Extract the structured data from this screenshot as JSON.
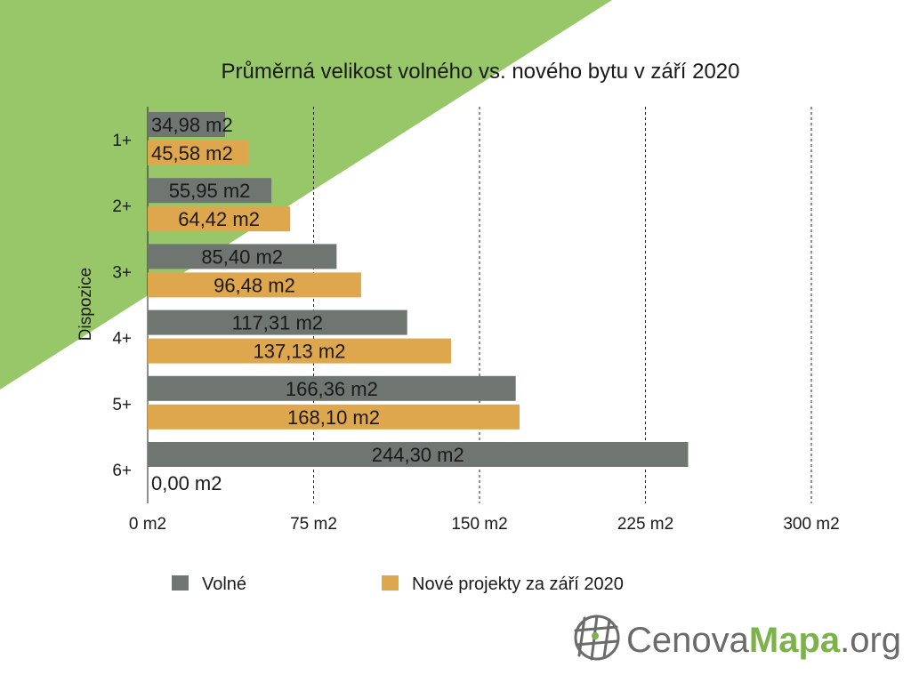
{
  "chart_data": {
    "type": "bar",
    "orientation": "horizontal",
    "title": "Průměrná velikost volného vs. nového bytu v září 2020",
    "ylabel": "Dispozice",
    "xlabel": "",
    "categories": [
      "1+",
      "2+",
      "3+",
      "4+",
      "5+",
      "6+"
    ],
    "series": [
      {
        "name": "Volné",
        "color": "#6f7571",
        "values": [
          34.98,
          55.95,
          85.4,
          117.31,
          166.36,
          244.3
        ],
        "labels": [
          "34,98 m2",
          "55,95 m2",
          "85,40 m2",
          "117,31 m2",
          "166,36 m2",
          "244,30 m2"
        ]
      },
      {
        "name": "Nové projekty za září 2020",
        "color": "#dea74e",
        "values": [
          45.58,
          64.42,
          96.48,
          137.13,
          168.1,
          0
        ],
        "labels": [
          "45,58 m2",
          "64,42 m2",
          "96,48 m2",
          "137,13 m2",
          "168,10 m2",
          "0,00 m2"
        ]
      }
    ],
    "xlim": [
      0,
      300
    ],
    "xticks": [
      {
        "value": 0,
        "label": "0  m2"
      },
      {
        "value": 75,
        "label": "75  m2"
      },
      {
        "value": 150,
        "label": "150  m2"
      },
      {
        "value": 225,
        "label": "225  m2"
      },
      {
        "value": 300,
        "label": "300  m2"
      }
    ],
    "grid": "vertical dashed",
    "legend_position": "bottom"
  },
  "colors": {
    "background_accent": "#98c76a",
    "logo_gray": "#6b6b6b",
    "logo_green": "#7bb34a"
  },
  "logo": {
    "part1": "Cenova",
    "part2": "Mapa",
    "part3": ".org",
    "icon": "globe-grid-icon"
  }
}
